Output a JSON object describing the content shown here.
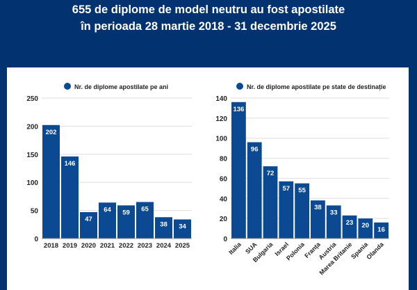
{
  "header": {
    "line1": "655 de diplome de model neutru au fost apostilate",
    "line2": "în perioada 28 martie 2018 - 31 decembrie 2025"
  },
  "colors": {
    "background": "#02326f",
    "bar": "#0b4a93",
    "panel": "#ffffff"
  },
  "chart_data": [
    {
      "type": "bar",
      "legend": "Nr. de diplome apostilate pe ani",
      "legend_position": "top",
      "categories": [
        "2018",
        "2019",
        "2020",
        "2021",
        "2022",
        "2023",
        "2024",
        "2025"
      ],
      "values": [
        202,
        146,
        47,
        64,
        59,
        65,
        38,
        34
      ],
      "ylim": [
        0,
        250
      ],
      "yticks": [
        0,
        50,
        100,
        150,
        200,
        250
      ],
      "grid": true
    },
    {
      "type": "bar",
      "legend": "Nr. de diplome apostilate pe state de destinație",
      "legend_position": "top",
      "categories": [
        "Italia",
        "SUA",
        "Bulgaria",
        "Israel",
        "Polonia",
        "Franța",
        "Austria",
        "Marea Britanie",
        "Spania",
        "Olanda"
      ],
      "values": [
        136,
        96,
        72,
        57,
        55,
        38,
        33,
        23,
        20,
        16
      ],
      "ylim": [
        0,
        140
      ],
      "yticks": [
        0,
        20,
        40,
        60,
        80,
        100,
        120,
        140
      ],
      "grid": true
    }
  ]
}
